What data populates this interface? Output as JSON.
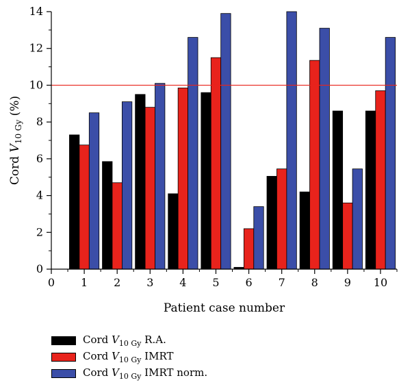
{
  "chart_data": {
    "type": "bar",
    "categories": [
      "1",
      "2",
      "3",
      "4",
      "5",
      "6",
      "7",
      "8",
      "9",
      "10"
    ],
    "x_ticks": [
      "0",
      "1",
      "2",
      "3",
      "4",
      "5",
      "6",
      "7",
      "8",
      "9",
      "10"
    ],
    "y_ticks": [
      "0",
      "2",
      "4",
      "6",
      "8",
      "10",
      "12",
      "14"
    ],
    "xlim": [
      0,
      10.5
    ],
    "ylim": [
      0,
      14
    ],
    "xlabel": "Patient case number",
    "ylabel_prefix": "Cord ",
    "ylabel_var": "V",
    "ylabel_sub": "10 Gy",
    "ylabel_suffix": " (%)",
    "reference_line": {
      "value": 10,
      "color": "#e8231c"
    },
    "grid": false,
    "legend_position": "bottom",
    "series": [
      {
        "prefix": "Cord ",
        "var": "V",
        "sub": "10 Gy",
        "suffix": " R.A.",
        "color": "#000000",
        "values": [
          7.3,
          5.85,
          9.5,
          4.1,
          9.6,
          0.1,
          5.05,
          4.2,
          8.6,
          8.6
        ]
      },
      {
        "prefix": "Cord ",
        "var": "V",
        "sub": "10 Gy",
        "suffix": " IMRT",
        "color": "#e8231c",
        "values": [
          6.75,
          4.7,
          8.8,
          9.85,
          11.5,
          2.2,
          5.45,
          11.35,
          3.6,
          9.7
        ]
      },
      {
        "prefix": "Cord ",
        "var": "V",
        "sub": "10 Gy",
        "suffix": " IMRT norm.",
        "color": "#3b4ea8",
        "values": [
          8.5,
          9.1,
          10.1,
          12.6,
          13.9,
          3.4,
          14.0,
          13.1,
          5.45,
          12.6
        ]
      }
    ]
  }
}
